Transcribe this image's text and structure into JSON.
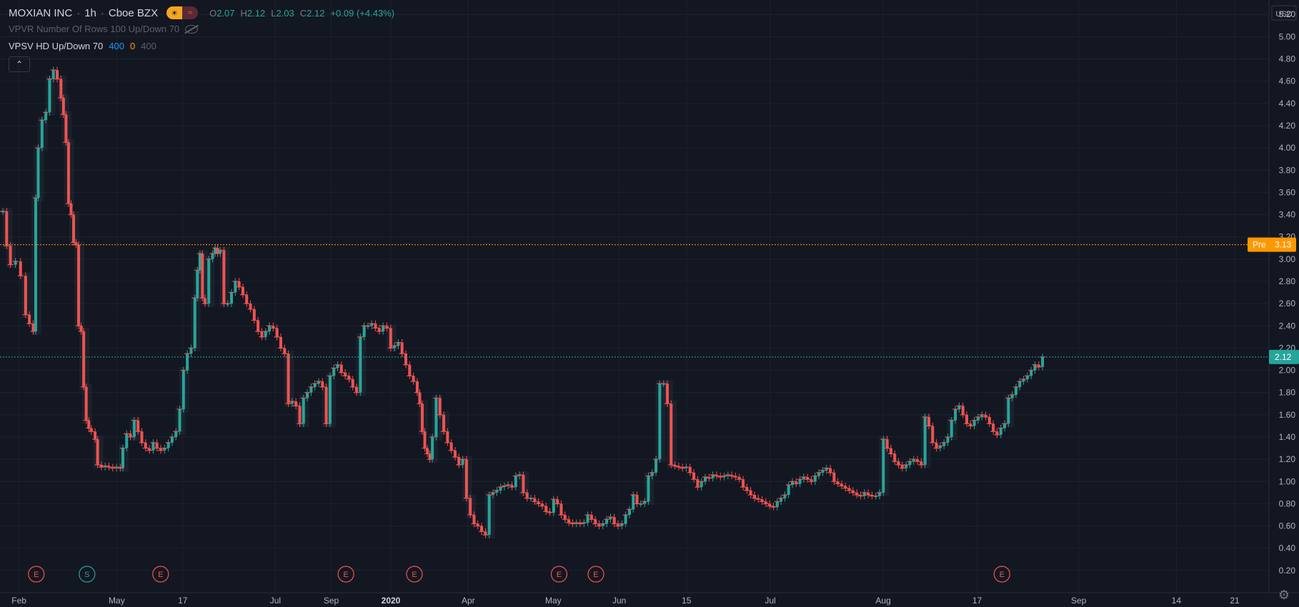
{
  "header": {
    "symbol": "MOXIAN INC",
    "interval": "1h",
    "exchange": "Cboe BZX",
    "ohlc": {
      "o_label": "O",
      "o": "2.07",
      "h_label": "H",
      "h": "2.12",
      "l_label": "L",
      "l": "2.03",
      "c_label": "C",
      "c": "2.12",
      "change": "+0.09 (+4.43%)"
    }
  },
  "indicators": {
    "vpvr": "VPVR Number Of Rows 100 Up/Down 70",
    "vpsv_name": "VPSV HD Up/Down 70",
    "vpsv_v1": "400",
    "vpsv_v2": "0",
    "vpsv_v3": "400"
  },
  "colors": {
    "background": "#131722",
    "grid": "#1e2230",
    "up": "#26a69a",
    "down": "#ef5350",
    "pre_line": "#ff9800",
    "last_line": "#26a69a",
    "axis_text": "#b2b5be"
  },
  "icons": [
    "market-closed-icon",
    "hide-eye-icon",
    "collapse-chevron-icon",
    "settings-gear-icon"
  ],
  "chart_data": {
    "type": "candlestick",
    "currency": "USD",
    "y_ticks": [
      "0.20",
      "0.40",
      "0.60",
      "0.80",
      "1.00",
      "1.20",
      "1.40",
      "1.60",
      "1.80",
      "2.00",
      "2.20",
      "2.40",
      "2.60",
      "2.80",
      "3.00",
      "3.20",
      "3.40",
      "3.60",
      "3.80",
      "4.00",
      "4.20",
      "4.40",
      "4.60",
      "4.80",
      "5.00",
      "5.20"
    ],
    "ylim": [
      0.0,
      5.33
    ],
    "x_ticks": [
      "Feb",
      "May",
      "17",
      "Jul",
      "Sep",
      "2020",
      "Apr",
      "May",
      "Jun",
      "15",
      "Jul",
      "Aug",
      "17",
      "Sep",
      "14",
      "21"
    ],
    "price_labels": {
      "pre_label": "Pre",
      "pre_value": "3.13",
      "last_value": "2.12"
    },
    "pre_price": 3.13,
    "last_price": 2.12,
    "events": [
      {
        "label": "E",
        "t": 0.019
      },
      {
        "label": "S",
        "t": 0.059
      },
      {
        "label": "E",
        "t": 0.117
      },
      {
        "label": "E",
        "t": 0.263
      },
      {
        "label": "E",
        "t": 0.317
      },
      {
        "label": "E",
        "t": 0.431
      },
      {
        "label": "E",
        "t": 0.46
      },
      {
        "label": "E",
        "t": 0.78
      }
    ],
    "series": [
      [
        0.0,
        3.43
      ],
      [
        0.003,
        3.12
      ],
      [
        0.006,
        2.95
      ],
      [
        0.01,
        2.98
      ],
      [
        0.014,
        2.85
      ],
      [
        0.018,
        2.5
      ],
      [
        0.021,
        2.42
      ],
      [
        0.024,
        2.35
      ],
      [
        0.026,
        3.55
      ],
      [
        0.028,
        4.0
      ],
      [
        0.031,
        4.25
      ],
      [
        0.034,
        4.32
      ],
      [
        0.037,
        4.62
      ],
      [
        0.04,
        4.7
      ],
      [
        0.043,
        4.62
      ],
      [
        0.046,
        4.45
      ],
      [
        0.048,
        4.3
      ],
      [
        0.05,
        4.05
      ],
      [
        0.052,
        3.5
      ],
      [
        0.054,
        3.4
      ],
      [
        0.056,
        3.15
      ],
      [
        0.058,
        3.13
      ],
      [
        0.06,
        2.4
      ],
      [
        0.062,
        2.35
      ],
      [
        0.064,
        1.85
      ],
      [
        0.066,
        1.55
      ],
      [
        0.068,
        1.48
      ],
      [
        0.07,
        1.45
      ],
      [
        0.073,
        1.38
      ],
      [
        0.075,
        1.15
      ],
      [
        0.078,
        1.13
      ],
      [
        0.081,
        1.14
      ],
      [
        0.084,
        1.13
      ],
      [
        0.087,
        1.12
      ],
      [
        0.09,
        1.13
      ],
      [
        0.093,
        1.12
      ],
      [
        0.095,
        1.3
      ],
      [
        0.098,
        1.43
      ],
      [
        0.101,
        1.4
      ],
      [
        0.104,
        1.55
      ],
      [
        0.107,
        1.45
      ],
      [
        0.11,
        1.35
      ],
      [
        0.113,
        1.3
      ],
      [
        0.116,
        1.28
      ],
      [
        0.119,
        1.35
      ],
      [
        0.122,
        1.3
      ],
      [
        0.125,
        1.28
      ],
      [
        0.128,
        1.3
      ],
      [
        0.131,
        1.35
      ],
      [
        0.134,
        1.4
      ],
      [
        0.137,
        1.45
      ],
      [
        0.14,
        1.65
      ],
      [
        0.143,
        2.0
      ],
      [
        0.146,
        2.15
      ],
      [
        0.149,
        2.2
      ],
      [
        0.152,
        2.65
      ],
      [
        0.154,
        2.9
      ],
      [
        0.156,
        3.05
      ],
      [
        0.158,
        2.65
      ],
      [
        0.16,
        2.6
      ],
      [
        0.163,
        3.0
      ],
      [
        0.166,
        3.05
      ],
      [
        0.168,
        3.1
      ],
      [
        0.17,
        3.05
      ],
      [
        0.172,
        3.08
      ],
      [
        0.175,
        2.6
      ],
      [
        0.178,
        2.6
      ],
      [
        0.181,
        2.7
      ],
      [
        0.184,
        2.8
      ],
      [
        0.187,
        2.75
      ],
      [
        0.19,
        2.68
      ],
      [
        0.193,
        2.6
      ],
      [
        0.196,
        2.55
      ],
      [
        0.199,
        2.45
      ],
      [
        0.202,
        2.35
      ],
      [
        0.205,
        2.3
      ],
      [
        0.208,
        2.35
      ],
      [
        0.211,
        2.4
      ],
      [
        0.214,
        2.38
      ],
      [
        0.217,
        2.3
      ],
      [
        0.22,
        2.2
      ],
      [
        0.223,
        2.15
      ],
      [
        0.226,
        1.7
      ],
      [
        0.229,
        1.72
      ],
      [
        0.232,
        1.68
      ],
      [
        0.235,
        1.52
      ],
      [
        0.238,
        1.75
      ],
      [
        0.241,
        1.8
      ],
      [
        0.244,
        1.85
      ],
      [
        0.247,
        1.88
      ],
      [
        0.25,
        1.9
      ],
      [
        0.253,
        1.85
      ],
      [
        0.256,
        1.52
      ],
      [
        0.259,
        1.95
      ],
      [
        0.262,
        2.02
      ],
      [
        0.265,
        2.05
      ],
      [
        0.268,
        1.98
      ],
      [
        0.271,
        1.95
      ],
      [
        0.274,
        1.92
      ],
      [
        0.277,
        1.85
      ],
      [
        0.28,
        1.8
      ],
      [
        0.283,
        2.3
      ],
      [
        0.286,
        2.4
      ],
      [
        0.289,
        2.4
      ],
      [
        0.292,
        2.42
      ],
      [
        0.295,
        2.38
      ],
      [
        0.298,
        2.35
      ],
      [
        0.301,
        2.4
      ],
      [
        0.304,
        2.38
      ],
      [
        0.307,
        2.2
      ],
      [
        0.31,
        2.22
      ],
      [
        0.313,
        2.25
      ],
      [
        0.316,
        2.15
      ],
      [
        0.319,
        2.05
      ],
      [
        0.322,
        1.95
      ],
      [
        0.325,
        1.9
      ],
      [
        0.328,
        1.8
      ],
      [
        0.33,
        1.7
      ],
      [
        0.332,
        1.45
      ],
      [
        0.334,
        1.3
      ],
      [
        0.336,
        1.25
      ],
      [
        0.338,
        1.2
      ],
      [
        0.34,
        1.4
      ],
      [
        0.343,
        1.75
      ],
      [
        0.346,
        1.6
      ],
      [
        0.349,
        1.45
      ],
      [
        0.352,
        1.35
      ],
      [
        0.355,
        1.28
      ],
      [
        0.358,
        1.22
      ],
      [
        0.361,
        1.15
      ],
      [
        0.364,
        1.2
      ],
      [
        0.367,
        0.85
      ],
      [
        0.37,
        0.7
      ],
      [
        0.373,
        0.62
      ],
      [
        0.376,
        0.6
      ],
      [
        0.379,
        0.55
      ],
      [
        0.382,
        0.52
      ],
      [
        0.385,
        0.88
      ],
      [
        0.388,
        0.9
      ],
      [
        0.391,
        0.92
      ],
      [
        0.394,
        0.95
      ],
      [
        0.397,
        0.96
      ],
      [
        0.4,
        0.97
      ],
      [
        0.403,
        0.95
      ],
      [
        0.406,
        1.05
      ],
      [
        0.409,
        1.06
      ],
      [
        0.412,
        0.9
      ],
      [
        0.415,
        0.85
      ],
      [
        0.418,
        0.85
      ],
      [
        0.421,
        0.82
      ],
      [
        0.424,
        0.8
      ],
      [
        0.427,
        0.78
      ],
      [
        0.43,
        0.73
      ],
      [
        0.433,
        0.72
      ],
      [
        0.436,
        0.84
      ],
      [
        0.439,
        0.8
      ],
      [
        0.442,
        0.7
      ],
      [
        0.445,
        0.66
      ],
      [
        0.448,
        0.63
      ],
      [
        0.451,
        0.62
      ],
      [
        0.454,
        0.63
      ],
      [
        0.457,
        0.62
      ],
      [
        0.46,
        0.63
      ],
      [
        0.463,
        0.7
      ],
      [
        0.466,
        0.66
      ],
      [
        0.469,
        0.62
      ],
      [
        0.472,
        0.6
      ],
      [
        0.475,
        0.62
      ],
      [
        0.478,
        0.66
      ],
      [
        0.481,
        0.68
      ],
      [
        0.484,
        0.62
      ],
      [
        0.487,
        0.6
      ],
      [
        0.49,
        0.62
      ],
      [
        0.493,
        0.7
      ],
      [
        0.496,
        0.75
      ],
      [
        0.499,
        0.88
      ],
      [
        0.502,
        0.8
      ],
      [
        0.505,
        0.8
      ],
      [
        0.508,
        0.82
      ],
      [
        0.511,
        1.05
      ],
      [
        0.514,
        1.08
      ],
      [
        0.517,
        1.2
      ],
      [
        0.52,
        1.88
      ],
      [
        0.523,
        1.88
      ],
      [
        0.526,
        1.7
      ],
      [
        0.529,
        1.15
      ],
      [
        0.532,
        1.14
      ],
      [
        0.535,
        1.13
      ],
      [
        0.538,
        1.12
      ],
      [
        0.541,
        1.13
      ],
      [
        0.544,
        1.08
      ],
      [
        0.547,
        1.02
      ],
      [
        0.55,
        0.95
      ],
      [
        0.553,
        1.0
      ],
      [
        0.556,
        1.04
      ],
      [
        0.559,
        1.03
      ],
      [
        0.562,
        1.06
      ],
      [
        0.565,
        1.05
      ],
      [
        0.568,
        1.04
      ],
      [
        0.571,
        1.05
      ],
      [
        0.574,
        1.06
      ],
      [
        0.577,
        1.05
      ],
      [
        0.58,
        1.04
      ],
      [
        0.583,
        1.02
      ],
      [
        0.586,
        0.95
      ],
      [
        0.589,
        0.92
      ],
      [
        0.592,
        0.88
      ],
      [
        0.595,
        0.85
      ],
      [
        0.598,
        0.84
      ],
      [
        0.601,
        0.82
      ],
      [
        0.604,
        0.8
      ],
      [
        0.607,
        0.78
      ],
      [
        0.61,
        0.77
      ],
      [
        0.613,
        0.82
      ],
      [
        0.616,
        0.85
      ],
      [
        0.619,
        0.88
      ],
      [
        0.622,
        0.97
      ],
      [
        0.625,
        1.0
      ],
      [
        0.628,
        0.98
      ],
      [
        0.631,
        1.02
      ],
      [
        0.634,
        1.04
      ],
      [
        0.637,
        1.02
      ],
      [
        0.64,
        1.0
      ],
      [
        0.643,
        1.05
      ],
      [
        0.646,
        1.08
      ],
      [
        0.649,
        1.1
      ],
      [
        0.652,
        1.12
      ],
      [
        0.655,
        1.08
      ],
      [
        0.658,
        1.0
      ],
      [
        0.661,
        0.98
      ],
      [
        0.664,
        0.96
      ],
      [
        0.667,
        0.94
      ],
      [
        0.67,
        0.92
      ],
      [
        0.673,
        0.9
      ],
      [
        0.676,
        0.88
      ],
      [
        0.679,
        0.87
      ],
      [
        0.682,
        0.9
      ],
      [
        0.685,
        0.88
      ],
      [
        0.688,
        0.87
      ],
      [
        0.691,
        0.87
      ],
      [
        0.694,
        0.9
      ],
      [
        0.697,
        1.38
      ],
      [
        0.7,
        1.3
      ],
      [
        0.703,
        1.25
      ],
      [
        0.706,
        1.18
      ],
      [
        0.709,
        1.15
      ],
      [
        0.712,
        1.12
      ],
      [
        0.715,
        1.15
      ],
      [
        0.718,
        1.18
      ],
      [
        0.721,
        1.2
      ],
      [
        0.724,
        1.18
      ],
      [
        0.727,
        1.15
      ],
      [
        0.73,
        1.58
      ],
      [
        0.733,
        1.5
      ],
      [
        0.736,
        1.35
      ],
      [
        0.739,
        1.3
      ],
      [
        0.742,
        1.32
      ],
      [
        0.745,
        1.35
      ],
      [
        0.748,
        1.4
      ],
      [
        0.751,
        1.55
      ],
      [
        0.754,
        1.65
      ],
      [
        0.757,
        1.68
      ],
      [
        0.76,
        1.6
      ],
      [
        0.763,
        1.52
      ],
      [
        0.766,
        1.5
      ],
      [
        0.769,
        1.55
      ],
      [
        0.772,
        1.58
      ],
      [
        0.775,
        1.6
      ],
      [
        0.778,
        1.58
      ],
      [
        0.781,
        1.52
      ],
      [
        0.784,
        1.45
      ],
      [
        0.787,
        1.42
      ],
      [
        0.79,
        1.48
      ],
      [
        0.793,
        1.52
      ],
      [
        0.796,
        1.75
      ],
      [
        0.799,
        1.78
      ],
      [
        0.802,
        1.85
      ],
      [
        0.805,
        1.9
      ],
      [
        0.808,
        1.92
      ],
      [
        0.811,
        1.95
      ],
      [
        0.814,
        2.0
      ],
      [
        0.817,
        2.05
      ],
      [
        0.82,
        2.03
      ],
      [
        0.823,
        2.12
      ]
    ]
  }
}
